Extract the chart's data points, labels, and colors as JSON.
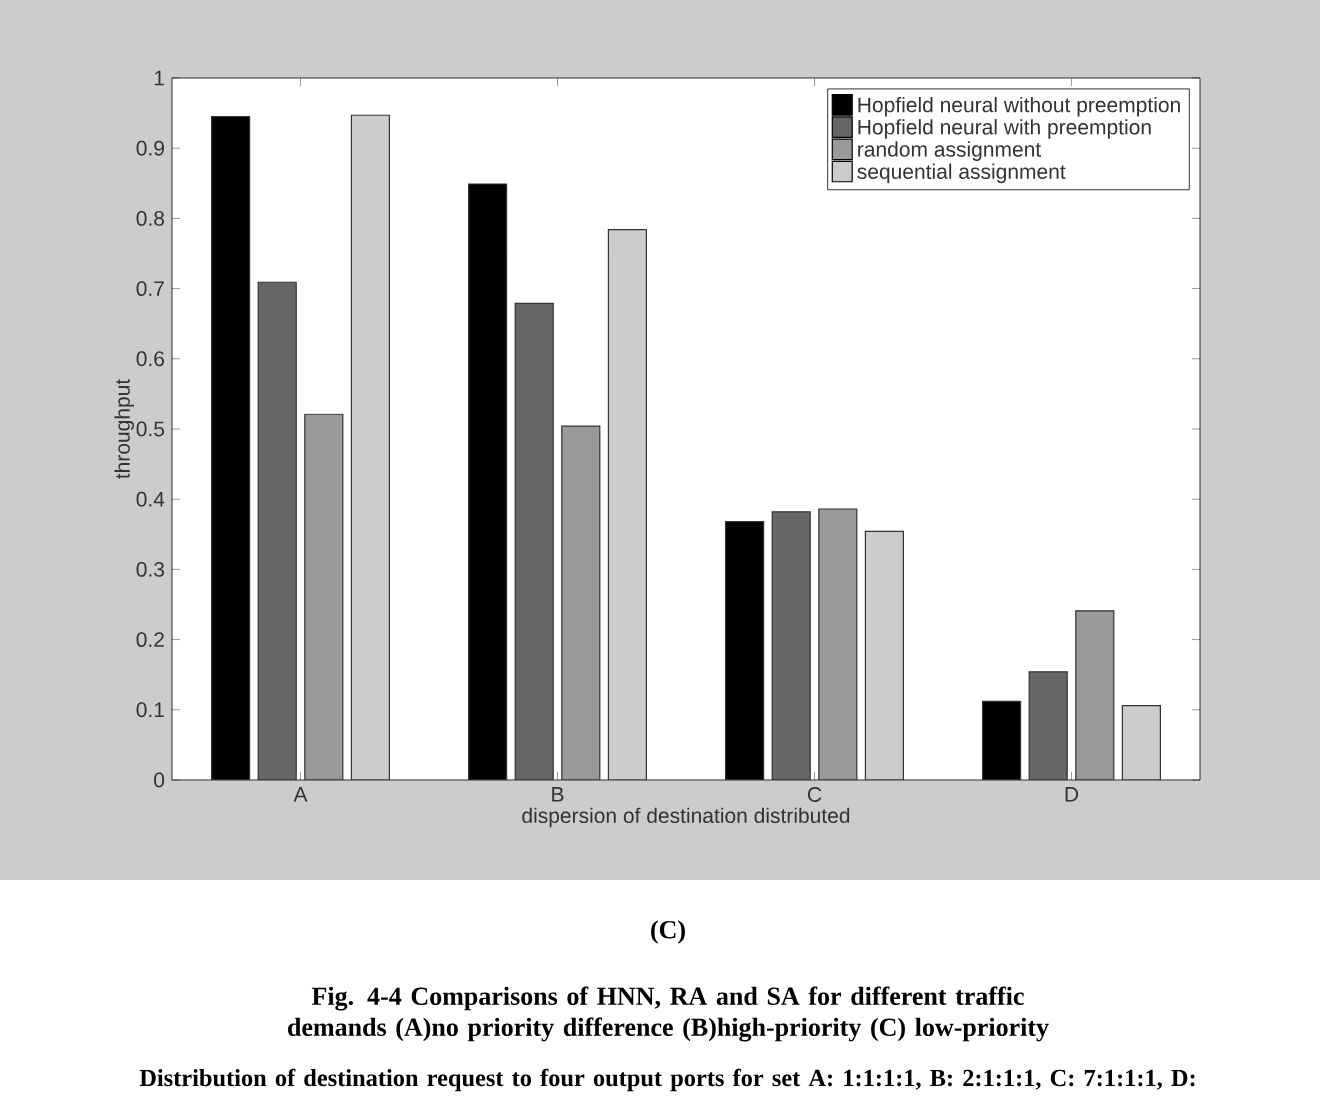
{
  "chart_data": {
    "type": "bar",
    "xlabel": "dispersion of destination distributed",
    "ylabel": "throughput",
    "categories": [
      "A",
      "B",
      "C",
      "D"
    ],
    "series": [
      {
        "name": "Hopfield neural without preemption",
        "color": "#000000",
        "values": [
          0.945,
          0.849,
          0.368,
          0.112
        ]
      },
      {
        "name": "Hopfield neural with preemption",
        "color": "#666666",
        "values": [
          0.709,
          0.679,
          0.382,
          0.154
        ]
      },
      {
        "name": "random assignment",
        "color": "#999999",
        "values": [
          0.521,
          0.504,
          0.386,
          0.241
        ]
      },
      {
        "name": "sequential assignment",
        "color": "#cccccc",
        "values": [
          0.947,
          0.784,
          0.354,
          0.106
        ]
      }
    ],
    "ylim": [
      0,
      1
    ],
    "yticks": [
      0,
      0.1,
      0.2,
      0.3,
      0.4,
      0.5,
      0.6,
      0.7,
      0.8,
      0.9,
      1
    ],
    "legend": "top right",
    "annotations": [
      "(C)",
      "Fig. 4-4 Comparisons of HNN, RA and SA for different traffic demands (A)no priority difference (B)high-priority (C) low-priority",
      "Distribution of destination request to four output ports for set A: 1:1:1:1, B: 2:1:1:1, C: 7:1:1:1, D:"
    ]
  }
}
